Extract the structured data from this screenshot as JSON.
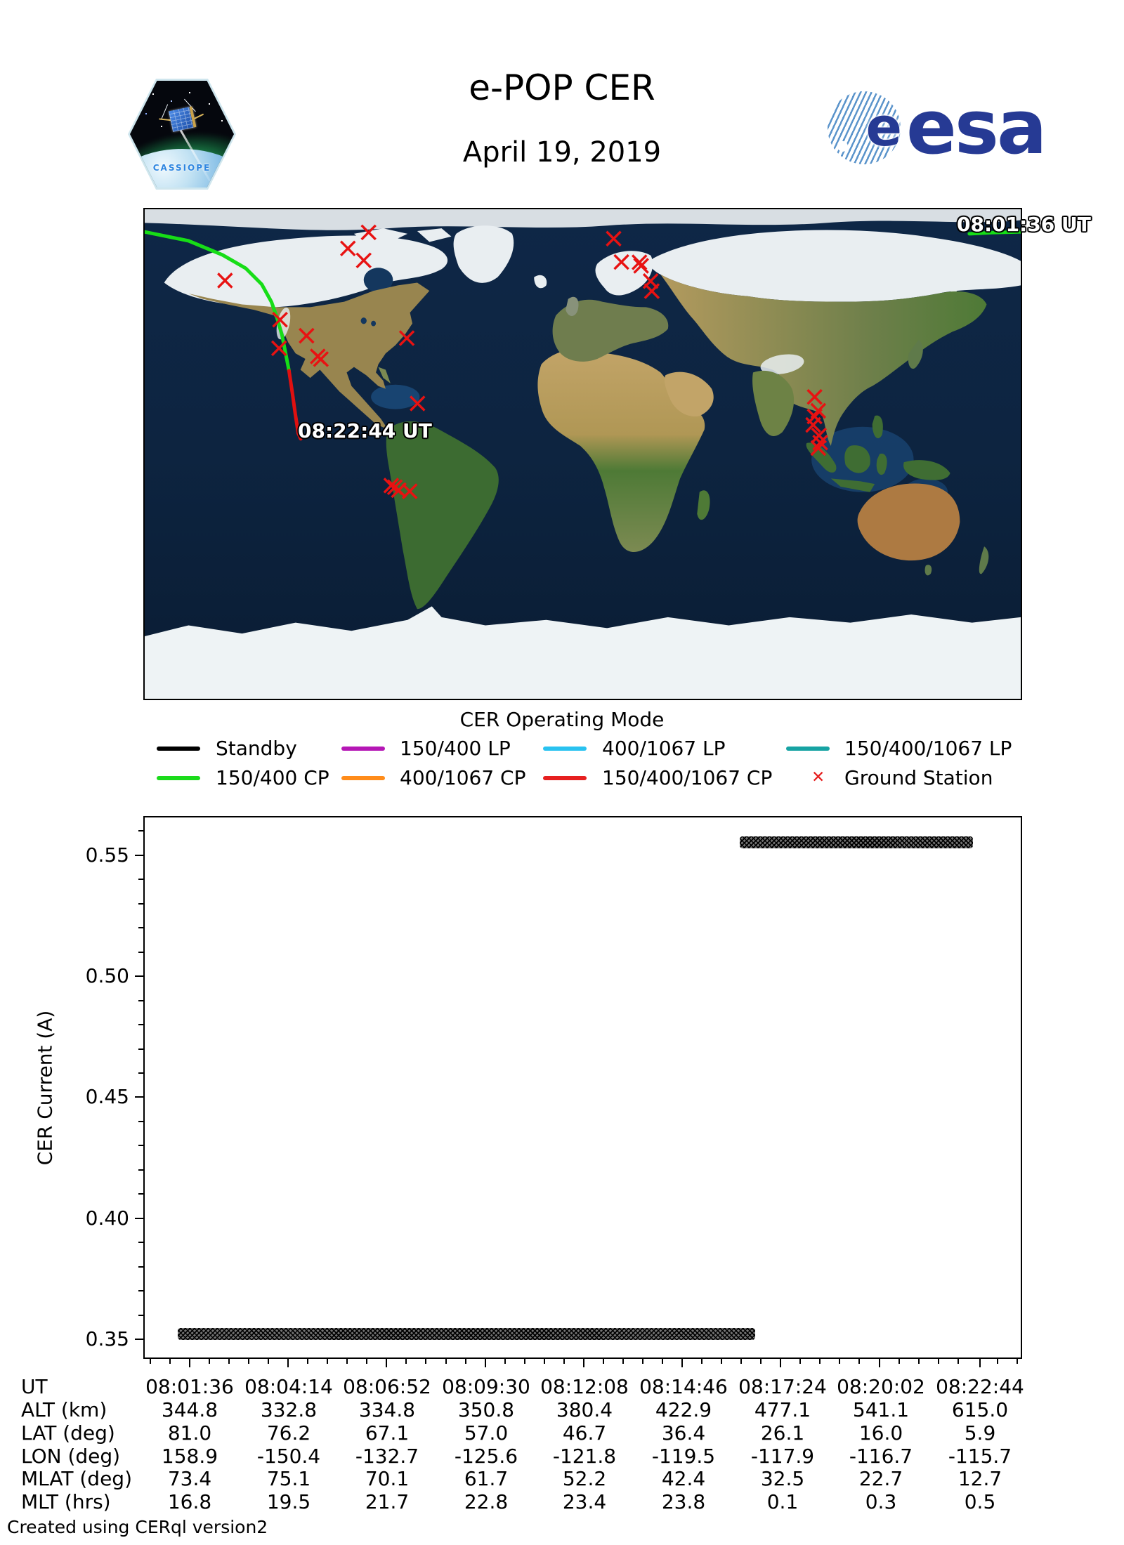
{
  "header": {
    "title": "e-POP CER",
    "subtitle": "April 19, 2019",
    "patch_name": "CASSIOPE",
    "esa_wordmark": "esa"
  },
  "map": {
    "start_time_label": "08:01:36 UT",
    "end_time_label": "08:22:44 UT",
    "ground_station_color": "#e81212",
    "track_green_color": "#17dd17",
    "track_red_color": "#e01010",
    "ground_stations": [
      [
        -88.0,
        81.5
      ],
      [
        -96.5,
        75.6
      ],
      [
        -90.0,
        71.2
      ],
      [
        -147.0,
        63.8
      ],
      [
        -124.4,
        49.4
      ],
      [
        -124.8,
        38.9
      ],
      [
        -113.5,
        43.5
      ],
      [
        -108.9,
        35.9
      ],
      [
        -107.6,
        34.9
      ],
      [
        -72.3,
        42.6
      ],
      [
        -67.9,
        18.6
      ],
      [
        -78.7,
        -11.6
      ],
      [
        -77.2,
        -12.2
      ],
      [
        -75.6,
        -13.3
      ],
      [
        -71.1,
        -13.7
      ],
      [
        12.7,
        79.2
      ],
      [
        15.9,
        70.6
      ],
      [
        23.3,
        70.5
      ],
      [
        24.0,
        69.2
      ],
      [
        27.9,
        63.6
      ],
      [
        28.4,
        59.9
      ],
      [
        95.3,
        21.0
      ],
      [
        96.8,
        15.9
      ],
      [
        95.3,
        13.8
      ],
      [
        94.7,
        10.7
      ],
      [
        97.1,
        6.8
      ],
      [
        97.6,
        4.2
      ],
      [
        96.8,
        2.2
      ]
    ],
    "track_green_wrap": [
      [
        158.9,
        81.0
      ],
      [
        168.0,
        81.4
      ],
      [
        180.0,
        81.7
      ]
    ],
    "track_green": [
      [
        -180.0,
        81.7
      ],
      [
        -162.0,
        78.4
      ],
      [
        -148.0,
        73.2
      ],
      [
        -138.5,
        68.3
      ],
      [
        -131.9,
        62.4
      ],
      [
        -127.9,
        55.9
      ],
      [
        -125.6,
        50.0
      ],
      [
        -123.6,
        43.8
      ],
      [
        -122.1,
        37.1
      ],
      [
        -120.7,
        30.6
      ]
    ],
    "track_red": [
      [
        -120.7,
        30.6
      ],
      [
        -119.3,
        22.3
      ],
      [
        -118.1,
        14.6
      ],
      [
        -116.9,
        7.6
      ],
      [
        -115.9,
        5.6
      ]
    ]
  },
  "legend": {
    "title": "CER Operating Mode",
    "items": [
      {
        "label": "Standby",
        "color": "#000000",
        "style": "line"
      },
      {
        "label": "150/400 LP",
        "color": "#b517b5",
        "style": "line"
      },
      {
        "label": "400/1067 LP",
        "color": "#29c2f0",
        "style": "line"
      },
      {
        "label": "150/400/1067 LP",
        "color": "#17a3a3",
        "style": "line"
      },
      {
        "label": "150/400 CP",
        "color": "#1bdb1b",
        "style": "line"
      },
      {
        "label": "400/1067 CP",
        "color": "#ff8c1a",
        "style": "line"
      },
      {
        "label": "150/400/1067 CP",
        "color": "#e62020",
        "style": "line"
      },
      {
        "label": "Ground Station",
        "color": "#e62020",
        "style": "marker"
      }
    ]
  },
  "chart_data": {
    "type": "scatter",
    "marker": "x",
    "marker_color": "#000000",
    "title": "",
    "xlabel": "",
    "ylabel": "CER Current (A)",
    "x_tick_labels": [
      "08:01:36",
      "08:04:14",
      "08:06:52",
      "08:09:30",
      "08:12:08",
      "08:14:46",
      "08:17:24",
      "08:20:02",
      "08:22:44"
    ],
    "y_tick_labels": [
      "0.35",
      "0.40",
      "0.45",
      "0.50",
      "0.55"
    ],
    "y_tick_values": [
      0.35,
      0.4,
      0.45,
      0.5,
      0.55
    ],
    "xlim": [
      "08:00:24",
      "08:23:49"
    ],
    "ylim": [
      0.3425,
      0.5656
    ],
    "grid": false,
    "segments": [
      {
        "name": "low-current-band",
        "y": 0.3525,
        "t_start": "08:01:17",
        "t_end": "08:16:43"
      },
      {
        "name": "high-current-band",
        "y": 0.5555,
        "t_start": "08:16:18",
        "t_end": "08:22:32"
      }
    ]
  },
  "table": {
    "rows": [
      {
        "label": "UT",
        "values": [
          "08:01:36",
          "08:04:14",
          "08:06:52",
          "08:09:30",
          "08:12:08",
          "08:14:46",
          "08:17:24",
          "08:20:02",
          "08:22:44"
        ]
      },
      {
        "label": "ALT (km)",
        "values": [
          "344.8",
          "332.8",
          "334.8",
          "350.8",
          "380.4",
          "422.9",
          "477.1",
          "541.1",
          "615.0"
        ]
      },
      {
        "label": "LAT (deg)",
        "values": [
          "81.0",
          "76.2",
          "67.1",
          "57.0",
          "46.7",
          "36.4",
          "26.1",
          "16.0",
          "5.9"
        ]
      },
      {
        "label": "LON (deg)",
        "values": [
          "158.9",
          "-150.4",
          "-132.7",
          "-125.6",
          "-121.8",
          "-119.5",
          "-117.9",
          "-116.7",
          "-115.7"
        ]
      },
      {
        "label": "MLAT (deg)",
        "values": [
          "73.4",
          "75.1",
          "70.1",
          "61.7",
          "52.2",
          "42.4",
          "32.5",
          "22.7",
          "12.7"
        ]
      },
      {
        "label": "MLT (hrs)",
        "values": [
          "16.8",
          "19.5",
          "21.7",
          "22.8",
          "23.4",
          "23.8",
          "0.1",
          "0.3",
          "0.5"
        ]
      }
    ]
  },
  "footer": {
    "note": "Created using CERql version2"
  }
}
